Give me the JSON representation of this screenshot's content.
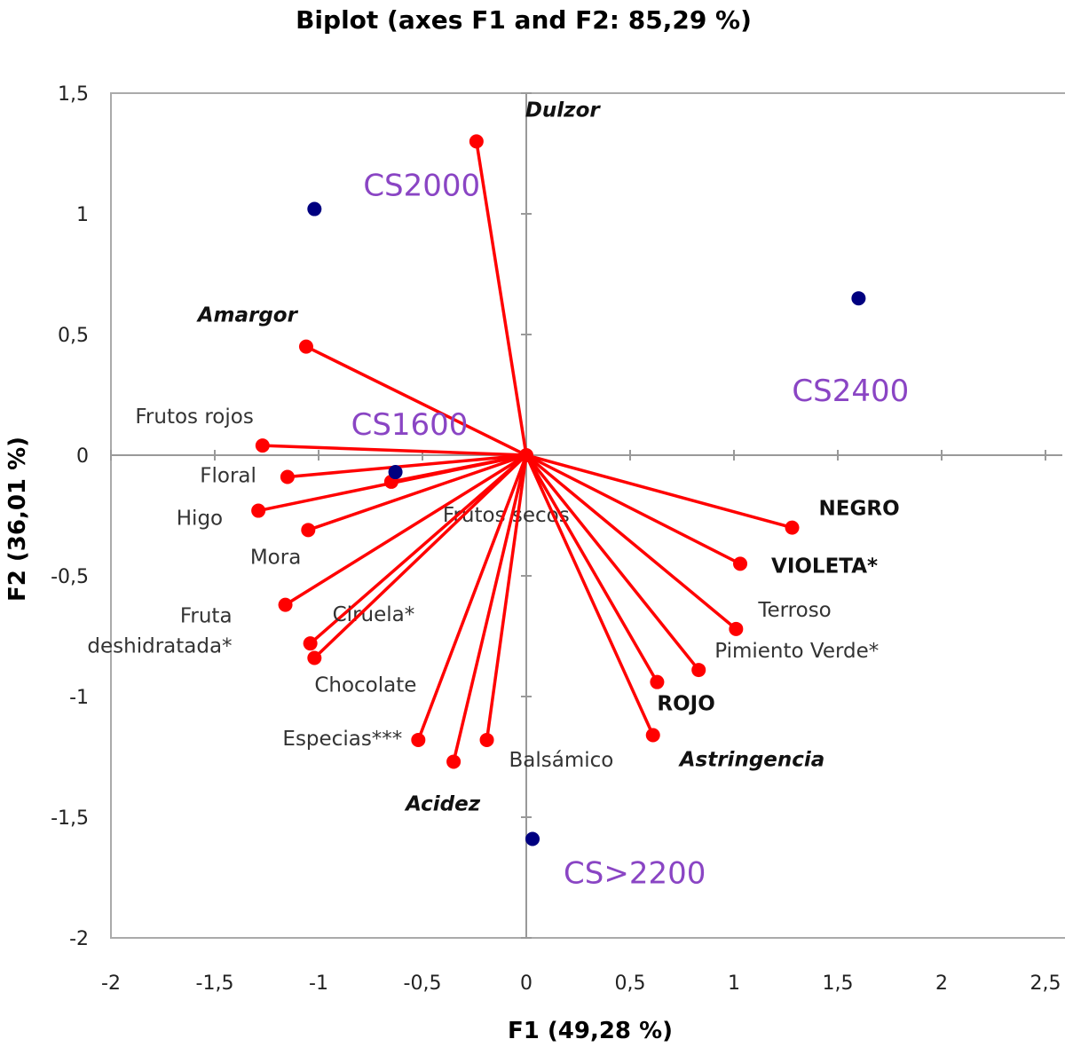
{
  "chart_data": {
    "type": "scatter",
    "title": "Biplot (axes F1 and F2: 85,29 %)",
    "xlabel": "F1 (49,28 %)",
    "ylabel": "F2 (36,01 %)",
    "xlim": [
      -2,
      2.5
    ],
    "ylim": [
      -2,
      1.5
    ],
    "xticks": [
      "-2",
      "-1,5",
      "-1",
      "-0,5",
      "0",
      "0,5",
      "1",
      "1,5",
      "2",
      "2,5"
    ],
    "yticks": [
      "-2",
      "-1,5",
      "-1",
      "-0,5",
      "0",
      "0,5",
      "1",
      "1,5"
    ],
    "grid": false,
    "variables": [
      {
        "name": "Dulzor",
        "x": -0.24,
        "y": 1.3,
        "style": "bolditalic"
      },
      {
        "name": "Amargor",
        "x": -1.06,
        "y": 0.45,
        "style": "bolditalic"
      },
      {
        "name": "Frutos rojos",
        "x": -1.27,
        "y": 0.04,
        "style": "normal"
      },
      {
        "name": "Floral",
        "x": -1.15,
        "y": -0.09,
        "style": "normal"
      },
      {
        "name": "Higo",
        "x": -1.29,
        "y": -0.23,
        "style": "normal"
      },
      {
        "name": "Mora",
        "x": -1.05,
        "y": -0.31,
        "style": "normal"
      },
      {
        "name": "Frutos secos",
        "x": -0.65,
        "y": -0.11,
        "style": "normal"
      },
      {
        "name": "Fruta deshidratada*",
        "x": -1.16,
        "y": -0.62,
        "style": "normal"
      },
      {
        "name": "Ciruela*",
        "x": -1.04,
        "y": -0.78,
        "style": "normal"
      },
      {
        "name": "Chocolate",
        "x": -1.02,
        "y": -0.84,
        "style": "normal"
      },
      {
        "name": "Especias***",
        "x": -0.52,
        "y": -1.18,
        "style": "normal"
      },
      {
        "name": "Acidez",
        "x": -0.35,
        "y": -1.27,
        "style": "bolditalic"
      },
      {
        "name": "Balsámico",
        "x": -0.19,
        "y": -1.18,
        "style": "normal"
      },
      {
        "name": "Astringencia",
        "x": 0.61,
        "y": -1.16,
        "style": "bolditalic"
      },
      {
        "name": "ROJO",
        "x": 0.63,
        "y": -0.94,
        "style": "bold"
      },
      {
        "name": "Pimiento Verde*",
        "x": 0.83,
        "y": -0.89,
        "style": "normal"
      },
      {
        "name": "Terroso",
        "x": 1.01,
        "y": -0.72,
        "style": "normal"
      },
      {
        "name": "VIOLETA*",
        "x": 1.03,
        "y": -0.45,
        "style": "bold"
      },
      {
        "name": "NEGRO",
        "x": 1.28,
        "y": -0.3,
        "style": "bold"
      }
    ],
    "observations": [
      {
        "name": "CS2000",
        "x": -1.02,
        "y": 1.02
      },
      {
        "name": "CS2400",
        "x": 1.6,
        "y": 0.65
      },
      {
        "name": "CS1600",
        "x": -0.63,
        "y": -0.07
      },
      {
        "name": "CS>2200",
        "x": 0.03,
        "y": -1.59
      }
    ],
    "colors": {
      "vector": "#ff0000",
      "observation_point": "#000080",
      "observation_label": "#8a45c4"
    }
  }
}
